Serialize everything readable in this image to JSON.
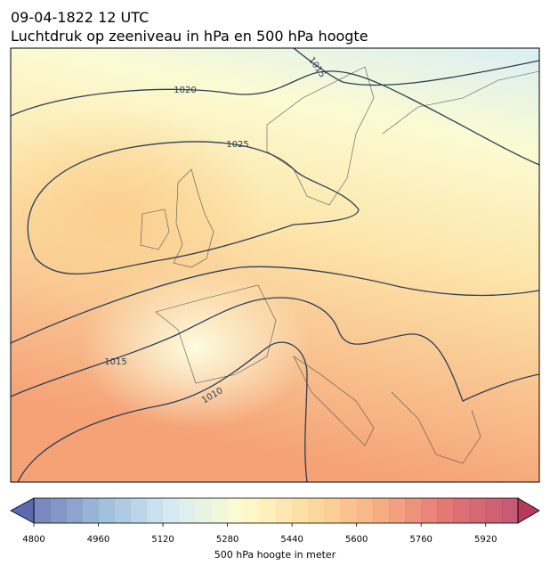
{
  "header": {
    "title_line_1": "09-04-1822 12 UTC",
    "title_line_2": "Luchtdruk op zeeniveau in hPa en 500 hPa hoogte"
  },
  "map": {
    "contour_labels": [
      "1020",
      "1025",
      "1015",
      "1015",
      "1010"
    ]
  },
  "colorbar": {
    "label": "500 hPa hoogte in meter",
    "lim": [
      4800,
      6000
    ],
    "step": 40,
    "ticks": [
      4800,
      4960,
      5120,
      5280,
      5440,
      5600,
      5760,
      5920
    ],
    "colormap": [
      "#5b6aae",
      "#8eb3d6",
      "#cfe8f1",
      "#fdfcc6",
      "#fdd48c",
      "#f6a06c",
      "#de5d5c",
      "#b9395c"
    ]
  }
}
